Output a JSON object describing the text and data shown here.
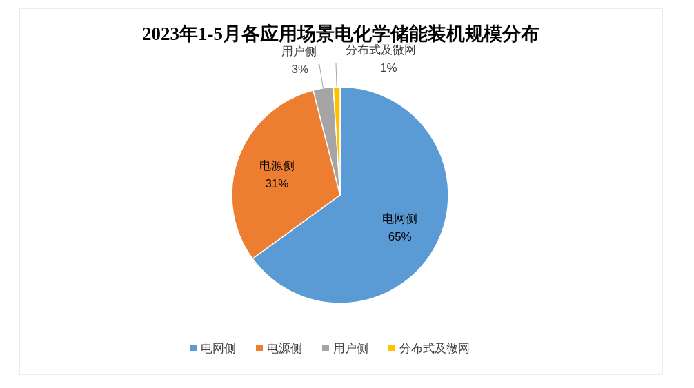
{
  "chart_data": {
    "type": "pie",
    "title": "2023年1-5月各应用场景电化学储能装机规模分布",
    "categories": [
      "电网侧",
      "电源侧",
      "用户侧",
      "分布式及微网"
    ],
    "values": [
      65,
      31,
      3,
      1
    ],
    "colors": [
      "#5b9bd5",
      "#ed7d31",
      "#a5a5a5",
      "#ffc000"
    ],
    "value_labels": [
      "65%",
      "31%",
      "3%",
      "1%"
    ],
    "legend": "bottom"
  }
}
